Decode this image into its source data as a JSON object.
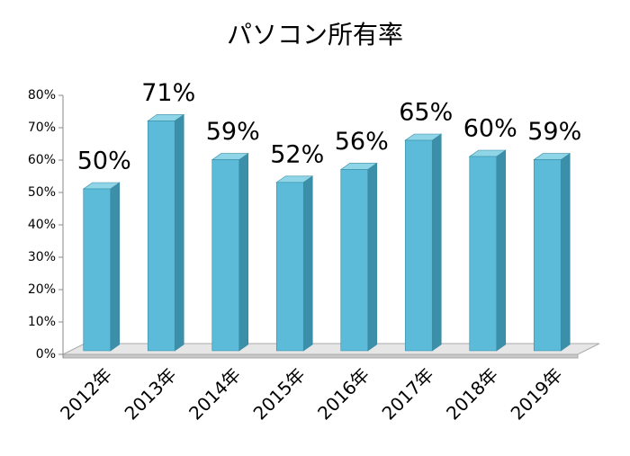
{
  "chart_data": {
    "type": "bar3d",
    "title": "パソコン所有率",
    "categories": [
      "2012年",
      "2013年",
      "2014年",
      "2015年",
      "2016年",
      "2017年",
      "2018年",
      "2019年"
    ],
    "values": [
      50,
      71,
      59,
      52,
      56,
      65,
      60,
      59
    ],
    "value_labels": [
      "50%",
      "71%",
      "59%",
      "52%",
      "56%",
      "65%",
      "60%",
      "59%"
    ],
    "color": "#5bbbd8",
    "ylim": [
      0,
      80
    ],
    "yticks": [
      {
        "value": 0,
        "label": "0%"
      },
      {
        "value": 10,
        "label": "10%"
      },
      {
        "value": 20,
        "label": "20%"
      },
      {
        "value": 30,
        "label": "30%"
      },
      {
        "value": 40,
        "label": "40%"
      },
      {
        "value": 50,
        "label": "50%"
      },
      {
        "value": 60,
        "label": "60%"
      },
      {
        "value": 70,
        "label": "70%"
      },
      {
        "value": 80,
        "label": "80%"
      }
    ],
    "grid": false
  }
}
